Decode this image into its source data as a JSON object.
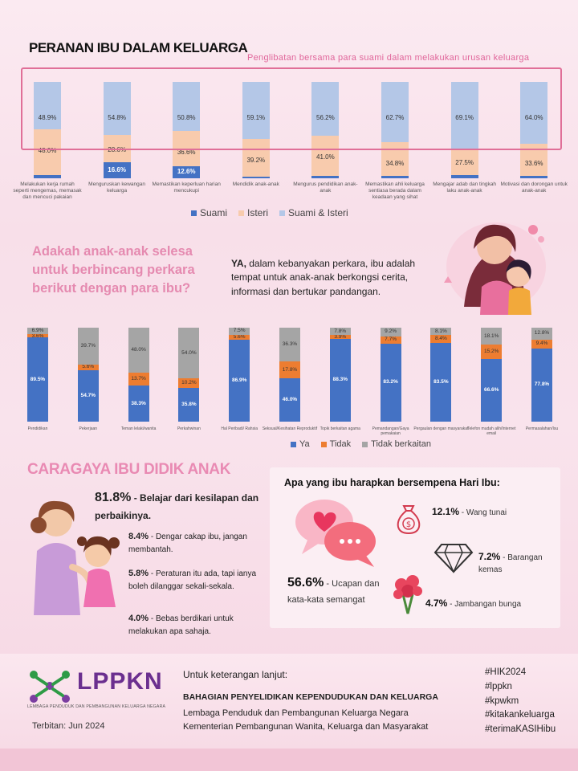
{
  "section1": {
    "title": "PERANAN IBU DALAM KELUARGA",
    "subtitle": "Penglibatan  bersama  para  suami  dalam  melakukan   urusan  keluarga",
    "legend": [
      {
        "label": "Suami",
        "color": "#4472c4"
      },
      {
        "label": "Isteri",
        "color": "#f8cbad"
      },
      {
        "label": "Suami & Isteri",
        "color": "#b4c7e7"
      }
    ]
  },
  "chart_data": [
    {
      "type": "bar",
      "stacked": true,
      "categories": [
        "Melakukan kerja rumah seperti mengemas, memasak dan mencuci pakaian",
        "Menguruskan kewangan keluarga",
        "Memastikan keperluan harian mencukupi",
        "Mendidik anak-anak",
        "Mengurus pendidikan anak-anak",
        "Memastikan ahli keluarga sentiasa berada dalam keadaan yang sihat",
        "Mengajar adab dan tingkah laku anak-anak",
        "Motivasi dan dorongan untuk anak-anak"
      ],
      "series": [
        {
          "name": "Suami",
          "values": [
            3.1,
            16.6,
            12.6,
            1.7,
            2.8,
            2.5,
            3.4,
            2.5
          ],
          "labels": [
            "3.1%",
            "16.6%",
            "12.6%",
            "1.7%",
            "2.8%",
            "2.5%",
            "3.4%",
            "2.5%"
          ]
        },
        {
          "name": "Isteri",
          "values": [
            48.0,
            28.6,
            36.6,
            39.2,
            41.0,
            34.8,
            27.5,
            33.6
          ],
          "labels": [
            "48.0%",
            "28.6%",
            "36.6%",
            "39.2%",
            "41.0%",
            "34.8%",
            "27.5%",
            "33.6%"
          ]
        },
        {
          "name": "Suami & Isteri",
          "values": [
            48.9,
            54.8,
            50.8,
            59.1,
            56.2,
            62.7,
            69.1,
            64.0
          ],
          "labels": [
            "48.9%",
            "54.8%",
            "50.8%",
            "59.1%",
            "56.2%",
            "62.7%",
            "69.1%",
            "64.0%"
          ]
        }
      ],
      "colors": [
        "#4472c4",
        "#f8cbad",
        "#b4c7e7"
      ]
    },
    {
      "type": "bar",
      "stacked": true,
      "categories": [
        "Pendidikan",
        "Pekerjaan",
        "Teman lelaki/wanita",
        "Perkahwinan",
        "Hal Peribadi/ Rahsia",
        "Seksual/Kesihatan  Reproduktif",
        "Topik  berkaitan  agama",
        "Pemandangan/Gaya  pemakaian",
        "Pergaulan  dengan  masyarakat",
        "Telefon  mudah alih/Internet  email",
        "Permasalahan/Isu"
      ],
      "series": [
        {
          "name": "Ya",
          "values": [
            89.5,
            54.7,
            38.3,
            35.8,
            86.9,
            46.0,
            88.3,
            83.2,
            83.5,
            66.6,
            77.8
          ],
          "labels": [
            "89.5%",
            "54.7%",
            "38.3%",
            "35.8%",
            "86.9%",
            "46.0%",
            "88.3%",
            "83.2%",
            "83.5%",
            "66.6%",
            "77.8%"
          ]
        },
        {
          "name": "Tidak",
          "values": [
            3.6,
            5.6,
            13.7,
            10.2,
            5.6,
            17.8,
            3.9,
            7.7,
            8.4,
            15.2,
            9.4
          ],
          "labels": [
            "3.6%",
            "5.6%",
            "13.7%",
            "10.2%",
            "5.6%",
            "17.8%",
            "3.9%",
            "7.7%",
            "8.4%",
            "15.2%",
            "9.4%"
          ]
        },
        {
          "name": "Tidak berkaitan",
          "values": [
            6.9,
            39.7,
            48.0,
            54.0,
            7.5,
            36.3,
            7.8,
            9.2,
            8.1,
            18.1,
            12.8
          ],
          "labels": [
            "6.9%",
            "39.7%",
            "48.0%",
            "54.0%",
            "7.5%",
            "36.3%",
            "7.8%",
            "9.2%",
            "8.1%",
            "18.1%",
            "12.8%"
          ]
        }
      ],
      "colors": [
        "#4472c4",
        "#ed7d31",
        "#a5a5a5"
      ]
    }
  ],
  "section2": {
    "question": "Adakah anak-anak selesa untuk berbincang perkara berikut dengan para ibu?",
    "answer_lead": "YA,",
    "answer_rest": " dalam kebanyakan perkara, ibu adalah tempat untuk  anak-anak  berkongsi cerita, informasi dan bertukar pandangan.",
    "legend": [
      {
        "label": "Ya",
        "color": "#4472c4"
      },
      {
        "label": "Tidak",
        "color": "#ed7d31"
      },
      {
        "label": "Tidak berkaitan",
        "color": "#a5a5a5"
      }
    ]
  },
  "section3": {
    "title": "CARAGAYA IBU DIDIK ANAK",
    "main_pct": "81.8%",
    "main_text": " - Belajar dari kesilapan dan perbaikinya.",
    "items": [
      {
        "pct": "8.4%",
        "text": " - Dengar cakap ibu, jangan membantah."
      },
      {
        "pct": "5.8%",
        "text": " - Peraturan itu ada, tapi ianya boleh dilanggar sekali-sekala."
      },
      {
        "pct": "4.0%",
        "text": " - Bebas berdikari untuk melakukan  apa sahaja."
      }
    ]
  },
  "section4": {
    "title": "Apa yang ibu harapkan bersempena Hari Ibu:",
    "main_pct": "56.6%",
    "main_text": " - Ucapan dan kata-kata semangat",
    "items": [
      {
        "pct": "12.1%",
        "text": " - Wang tunai",
        "icon": "money-bag-icon"
      },
      {
        "pct": "7.2%",
        "text": " - Barangan kemas",
        "icon": "diamond-icon"
      },
      {
        "pct": "4.7%",
        "text": " - Jambangan bunga",
        "icon": "flower-bouquet-icon"
      }
    ]
  },
  "footer": {
    "logo_text": "LPPKN",
    "logo_sub": "LEMBAGA PENDUDUK DAN PEMBANGUNAN KELUARGA NEGARA",
    "published": "Terbitan: Jun 2024",
    "more_info": "Untuk keterangan lanjut:",
    "dept": "BAHAGIAN PENYELIDIKAN KEPENDUDUKAN DAN KELUARGA",
    "org1": "Lembaga Penduduk dan Pembangunan Keluarga Negara",
    "org2": "Kementerian Pembangunan Wanita, Keluarga dan Masyarakat",
    "hashtags": [
      "#HIK2024",
      "#lppkn",
      "#kpwkm",
      "#kitakankeluarga",
      "#terimaKASIHibu"
    ]
  }
}
